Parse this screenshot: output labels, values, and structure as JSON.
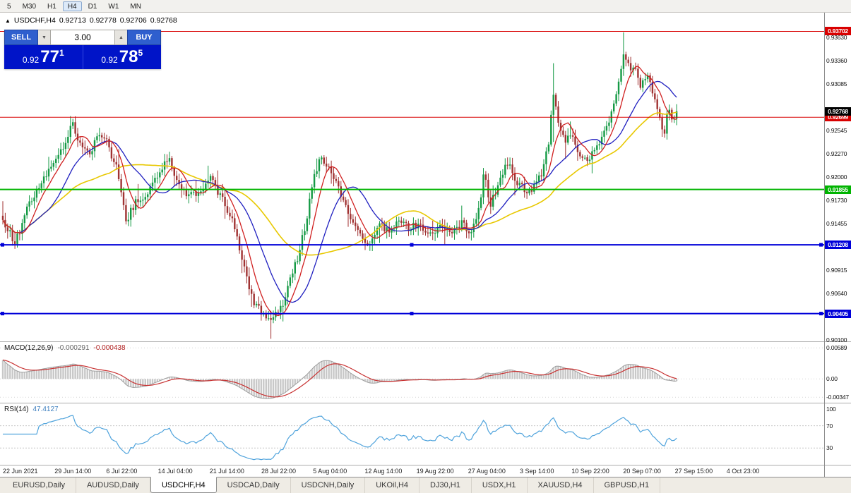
{
  "toolbar": {
    "timeframes": [
      "5",
      "M30",
      "H1",
      "H4",
      "D1",
      "W1",
      "MN"
    ],
    "active": "H4"
  },
  "window": {
    "title": "USDCHF,H4",
    "ohlc": {
      "open": "0.92713",
      "high": "0.92778",
      "low": "0.92706",
      "close": "0.92768"
    }
  },
  "trade_panel": {
    "sell_label": "SELL",
    "buy_label": "BUY",
    "volume": "3.00",
    "sell_price": {
      "base": "0.92",
      "big": "77",
      "sup": "1"
    },
    "buy_price": {
      "base": "0.92",
      "big": "78",
      "sup": "5"
    }
  },
  "tabs": {
    "items": [
      "EURUSD,Daily",
      "AUDUSD,Daily",
      "USDCHF,H4",
      "USDCAD,Daily",
      "USDCNH,Daily",
      "UKOil,H4",
      "DJ30,H1",
      "USDX,H1",
      "XAUUSD,H4",
      "GBPUSD,H1"
    ],
    "active_index": 2
  },
  "chart_data": {
    "type": "candlestick",
    "symbol": "USDCHF",
    "timeframe": "H4",
    "price_range": [
      0.9008,
      0.9392
    ],
    "data_end_frac": 0.821,
    "candle_count": 280,
    "colors": {
      "up": "#159A45",
      "down": "#A03232",
      "ma_fast": "#D02020",
      "ma_mid": "#2020C0",
      "ma_slow": "#E8C800",
      "macd_hist": "#C8C8C8",
      "macd_edge": "#9E9E9E",
      "macd_signal": "#C83232",
      "rsi": "#4FA3DC"
    },
    "moving_average_periods": {
      "fast": 8,
      "mid": 20,
      "slow": 45
    },
    "y_ticks": [
      "0.93630",
      "0.93360",
      "0.93085",
      "0.92545",
      "0.92270",
      "0.92000",
      "0.91730",
      "0.91455",
      "0.90915",
      "0.90640",
      "0.90100"
    ],
    "horizontal_lines": [
      {
        "price": 0.93702,
        "label": "0.93702",
        "color": "#D90000",
        "width": 1,
        "handles": false
      },
      {
        "price": 0.92699,
        "label": "0.92699",
        "color": "#D90000",
        "width": 1,
        "handles": false
      },
      {
        "price": 0.91855,
        "label": "0.91855",
        "color": "#00B400",
        "width": 2,
        "handles": false
      },
      {
        "price": 0.91208,
        "label": "0.91208",
        "color": "#0000D9",
        "width": 2,
        "handles": true
      },
      {
        "price": 0.90405,
        "label": "0.90405",
        "color": "#0000D9",
        "width": 2,
        "handles": true
      }
    ],
    "current_price": {
      "value": 0.92768,
      "label": "0.92768",
      "box_color": "#000000"
    },
    "x_labels": [
      "22 Jun 2021",
      "29 Jun 14:00",
      "6 Jul 22:00",
      "14 Jul 04:00",
      "21 Jul 14:00",
      "28 Jul 22:00",
      "5 Aug 04:00",
      "12 Aug 14:00",
      "19 Aug 22:00",
      "27 Aug 04:00",
      "3 Sep 14:00",
      "10 Sep 22:00",
      "20 Sep 07:00",
      "27 Sep 15:00",
      "4 Oct 23:00"
    ],
    "close_keypoints": [
      [
        0.0,
        0.915
      ],
      [
        0.018,
        0.9122
      ],
      [
        0.037,
        0.9165
      ],
      [
        0.061,
        0.92
      ],
      [
        0.086,
        0.9228
      ],
      [
        0.104,
        0.9262
      ],
      [
        0.116,
        0.9235
      ],
      [
        0.128,
        0.9228
      ],
      [
        0.144,
        0.925
      ],
      [
        0.156,
        0.9238
      ],
      [
        0.171,
        0.9205
      ],
      [
        0.183,
        0.915
      ],
      [
        0.199,
        0.9172
      ],
      [
        0.215,
        0.9182
      ],
      [
        0.232,
        0.9202
      ],
      [
        0.247,
        0.9224
      ],
      [
        0.259,
        0.919
      ],
      [
        0.275,
        0.9176
      ],
      [
        0.293,
        0.9186
      ],
      [
        0.308,
        0.9197
      ],
      [
        0.324,
        0.9177
      ],
      [
        0.337,
        0.9157
      ],
      [
        0.348,
        0.9128
      ],
      [
        0.361,
        0.9082
      ],
      [
        0.373,
        0.9052
      ],
      [
        0.388,
        0.904
      ],
      [
        0.397,
        0.9028
      ],
      [
        0.406,
        0.9042
      ],
      [
        0.416,
        0.9052
      ],
      [
        0.428,
        0.9082
      ],
      [
        0.44,
        0.9113
      ],
      [
        0.45,
        0.9146
      ],
      [
        0.461,
        0.92
      ],
      [
        0.471,
        0.922
      ],
      [
        0.483,
        0.921
      ],
      [
        0.493,
        0.9197
      ],
      [
        0.504,
        0.9178
      ],
      [
        0.513,
        0.9152
      ],
      [
        0.528,
        0.9133
      ],
      [
        0.542,
        0.9118
      ],
      [
        0.556,
        0.9145
      ],
      [
        0.571,
        0.9137
      ],
      [
        0.587,
        0.9149
      ],
      [
        0.601,
        0.9141
      ],
      [
        0.617,
        0.9146
      ],
      [
        0.633,
        0.9131
      ],
      [
        0.648,
        0.9141
      ],
      [
        0.664,
        0.9136
      ],
      [
        0.68,
        0.9146
      ],
      [
        0.694,
        0.9137
      ],
      [
        0.707,
        0.9162
      ],
      [
        0.714,
        0.9206
      ],
      [
        0.724,
        0.9166
      ],
      [
        0.733,
        0.9188
      ],
      [
        0.748,
        0.9219
      ],
      [
        0.764,
        0.9191
      ],
      [
        0.78,
        0.9182
      ],
      [
        0.792,
        0.9191
      ],
      [
        0.803,
        0.9212
      ],
      [
        0.81,
        0.9242
      ],
      [
        0.817,
        0.9296
      ],
      [
        0.825,
        0.9258
      ],
      [
        0.834,
        0.9241
      ],
      [
        0.843,
        0.9248
      ],
      [
        0.856,
        0.9226
      ],
      [
        0.868,
        0.9219
      ],
      [
        0.88,
        0.9234
      ],
      [
        0.892,
        0.925
      ],
      [
        0.901,
        0.927
      ],
      [
        0.909,
        0.9295
      ],
      [
        0.917,
        0.9325
      ],
      [
        0.921,
        0.9343
      ],
      [
        0.929,
        0.9331
      ],
      [
        0.939,
        0.9322
      ],
      [
        0.947,
        0.9305
      ],
      [
        0.956,
        0.932
      ],
      [
        0.966,
        0.9297
      ],
      [
        0.974,
        0.9268
      ],
      [
        0.982,
        0.9254
      ],
      [
        0.988,
        0.9282
      ],
      [
        0.994,
        0.9262
      ],
      [
        1.0,
        0.92768
      ]
    ],
    "macd": {
      "label": "MACD(12,26,9)",
      "value_main": "-0.000291",
      "value_signal": "-0.000438",
      "range": [
        -0.0045,
        0.007
      ],
      "ticks": [
        {
          "label": "0.00589",
          "value": 0.00589
        },
        {
          "label": "0.00",
          "value": 0
        },
        {
          "label": "-0.00347",
          "value": -0.00347
        }
      ]
    },
    "rsi": {
      "label": "RSI(14)",
      "value": "47.4127",
      "range": [
        0,
        110
      ],
      "ticks": [
        {
          "label": "100",
          "value": 100
        },
        {
          "label": "70",
          "value": 70
        },
        {
          "label": "30",
          "value": 30
        }
      ],
      "levels": [
        70,
        30
      ]
    }
  }
}
